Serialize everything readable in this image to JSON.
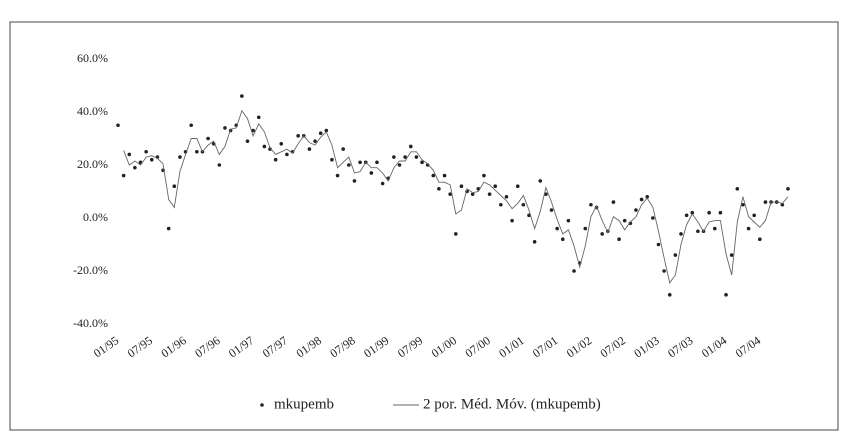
{
  "chart_data": {
    "type": "scatter_line",
    "categories": [
      "01/95",
      null,
      null,
      null,
      null,
      null,
      "07/95",
      null,
      null,
      null,
      null,
      null,
      "01/96",
      null,
      null,
      null,
      null,
      null,
      "07/96",
      null,
      null,
      null,
      null,
      null,
      "01/97",
      null,
      null,
      null,
      null,
      null,
      "07/97",
      null,
      null,
      null,
      null,
      null,
      "01/98",
      null,
      null,
      null,
      null,
      null,
      "07/98",
      null,
      null,
      null,
      null,
      null,
      "01/99",
      null,
      null,
      null,
      null,
      null,
      "07/99",
      null,
      null,
      null,
      null,
      null,
      "01/00",
      null,
      null,
      null,
      null,
      null,
      "07/00",
      null,
      null,
      null,
      null,
      null,
      "01/01",
      null,
      null,
      null,
      null,
      null,
      "07/01",
      null,
      null,
      null,
      null,
      null,
      "01/02",
      null,
      null,
      null,
      null,
      null,
      "07/02",
      null,
      null,
      null,
      null,
      null,
      "01/03",
      null,
      null,
      null,
      null,
      null,
      "07/03",
      null,
      null,
      null,
      null,
      null,
      "01/04",
      null,
      null,
      null,
      null,
      null,
      "07/04",
      null,
      null,
      null,
      null,
      null
    ],
    "series": [
      {
        "name": "mkupemb",
        "color": "#222222",
        "kind": "points",
        "values": [
          35,
          16,
          24,
          19,
          21,
          25,
          22,
          23,
          18,
          -4,
          12,
          23,
          25,
          35,
          25,
          25,
          30,
          28,
          20,
          34,
          33,
          35,
          46,
          29,
          33,
          38,
          27,
          26,
          22,
          28,
          24,
          25,
          31,
          31,
          26,
          29,
          32,
          33,
          22,
          16,
          26,
          20,
          14,
          21,
          21,
          17,
          21,
          13,
          15,
          23,
          20,
          23,
          27,
          23,
          21,
          20,
          16,
          11,
          16,
          9,
          -6,
          12,
          10,
          9,
          11,
          16,
          9,
          12,
          5,
          8,
          -1,
          12,
          5,
          1,
          -9,
          14,
          9,
          3,
          -4,
          -8,
          -1,
          -20,
          -17,
          -4,
          5,
          4,
          -6,
          -5,
          6,
          -8,
          -1,
          -2,
          3,
          7,
          8,
          0,
          -10,
          -20,
          -29,
          -14,
          -6,
          1,
          2,
          -5,
          -5,
          2,
          -4,
          2,
          -29,
          -14,
          11,
          5,
          -4,
          1,
          -8,
          6,
          6,
          6,
          5,
          11
        ]
      },
      {
        "name": "2 por. Méd. Móv. (mkupemb)",
        "color": "#666666",
        "kind": "line",
        "values": [
          null,
          25.5,
          20,
          21.5,
          20,
          23,
          23.5,
          22.5,
          20.5,
          7,
          4,
          17.5,
          24,
          30,
          30,
          25,
          27.5,
          29,
          24,
          27,
          33.5,
          34,
          40.5,
          37.5,
          31,
          35.5,
          32.5,
          26.5,
          24,
          25,
          26,
          24.5,
          28,
          31,
          28.5,
          27.5,
          30.5,
          32.5,
          27.5,
          19,
          21,
          23,
          17,
          17.5,
          21,
          19,
          19,
          17,
          14,
          19,
          21.5,
          21.5,
          25,
          25,
          22,
          20.5,
          18,
          13.5,
          13.5,
          12.5,
          1.5,
          3,
          11,
          9.5,
          10,
          13.5,
          12.5,
          10.5,
          8.5,
          6.5,
          3.5,
          5.5,
          8.5,
          3,
          -4,
          2.5,
          11.5,
          6,
          -0.5,
          -6,
          -4.5,
          -10.5,
          -18.5,
          -10.5,
          0.5,
          4.5,
          -1,
          -5.5,
          0.5,
          -1,
          -4.5,
          -1.5,
          0.5,
          5,
          7.5,
          4,
          -5,
          -15,
          -24.5,
          -21.5,
          -10,
          -2.5,
          1.5,
          -1.5,
          -5,
          -1.5,
          -1,
          -1,
          -13.5,
          -21.5,
          -1.5,
          8,
          0.5,
          -1.5,
          -3.5,
          -1,
          6,
          6,
          5.5,
          8
        ]
      }
    ],
    "ylim": [
      -40,
      60
    ],
    "yticks": [
      {
        "value": 60,
        "label": "60.0%"
      },
      {
        "value": 40,
        "label": "40.0%"
      },
      {
        "value": 20,
        "label": "20.0%"
      },
      {
        "value": 0,
        "label": "0.0%"
      },
      {
        "value": -20,
        "label": "-20.0%"
      },
      {
        "value": -40,
        "label": "-40.0%"
      }
    ],
    "grid": false,
    "legend": "bottom"
  }
}
